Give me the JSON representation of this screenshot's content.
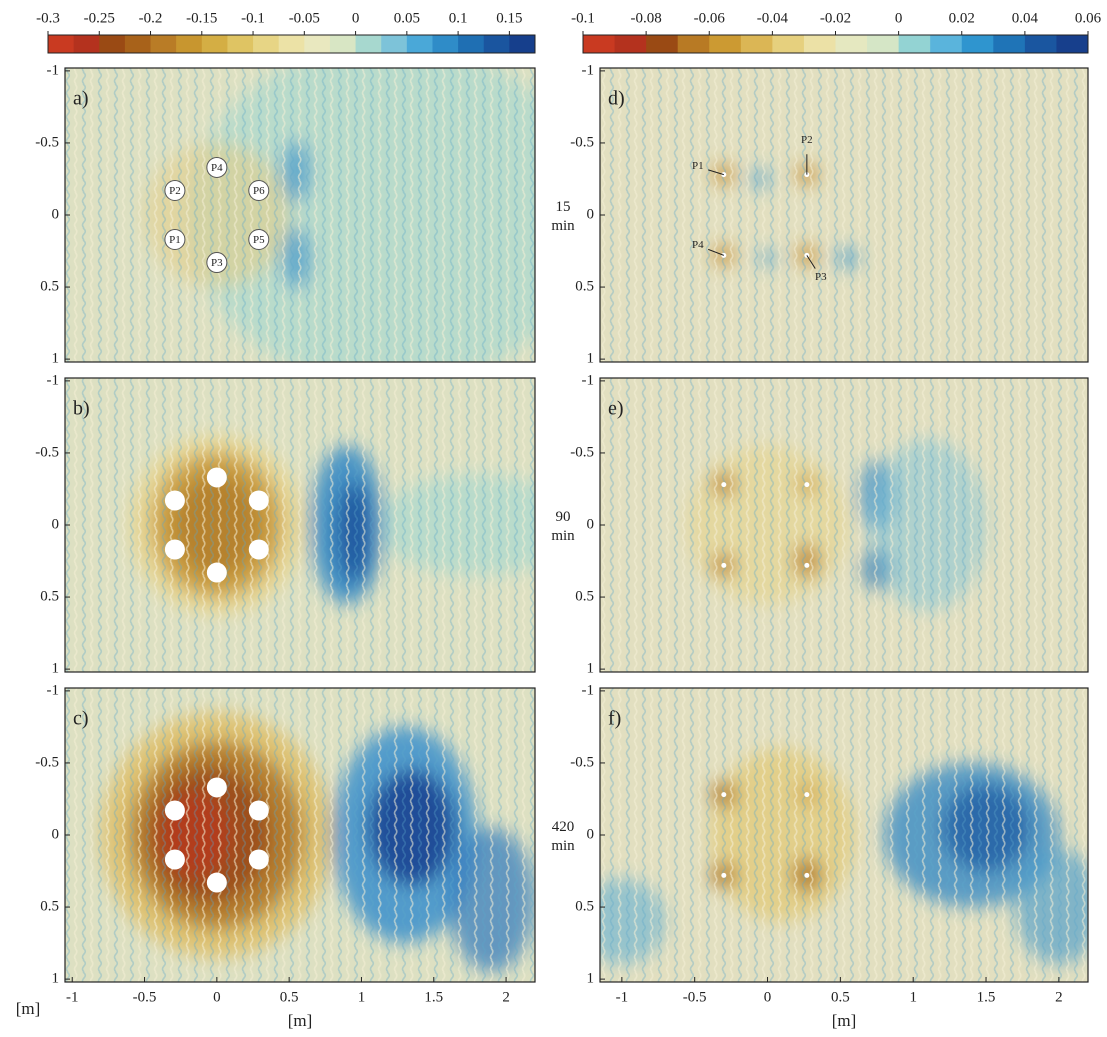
{
  "chart_data": [
    {
      "type": "heatmap",
      "panel_label": "a)",
      "time_label": "15 min",
      "colorbar": {
        "lim": [
          -0.3,
          0.175
        ],
        "ticks": [
          -0.3,
          -0.25,
          -0.2,
          -0.15,
          -0.1,
          -0.05,
          0,
          0.05,
          0.1,
          0.15
        ],
        "colors": [
          "#c93a21",
          "#b4321e",
          "#9a4a14",
          "#a8621a",
          "#b97c26",
          "#c8962f",
          "#d4ae44",
          "#dfc463",
          "#e7d585",
          "#ece2a6",
          "#e9e8bf",
          "#d8e6c4",
          "#a7d8cf",
          "#7dc3d9",
          "#4aa8d8",
          "#2f8cc8",
          "#1f6fb3",
          "#1a559f",
          "#163f8c"
        ]
      },
      "xlim": [
        -1.05,
        2.2
      ],
      "ylim": [
        -1.02,
        1.02
      ],
      "y_reversed": true,
      "yticks": [
        -1,
        -0.5,
        0,
        0.5,
        1
      ],
      "piles": [
        "P4",
        "P2",
        "P6",
        "P1",
        "P5",
        "P3"
      ]
    },
    {
      "type": "heatmap",
      "panel_label": "b)",
      "time_label": "90 min",
      "xlim": [
        -1.05,
        2.2
      ],
      "ylim": [
        -1.02,
        1.02
      ],
      "y_reversed": true,
      "yticks": [
        -1,
        -0.5,
        0,
        0.5,
        1
      ]
    },
    {
      "type": "heatmap",
      "panel_label": "c)",
      "time_label": "420 min",
      "xlim": [
        -1.05,
        2.2
      ],
      "ylim": [
        -1.02,
        1.02
      ],
      "y_reversed": true,
      "yticks": [
        -1,
        -0.5,
        0,
        0.5,
        1
      ],
      "xticks": [
        -1,
        -0.5,
        0,
        0.5,
        1,
        1.5,
        2
      ],
      "x_label": "[m]",
      "y_label": "[m]"
    },
    {
      "type": "heatmap",
      "panel_label": "d)",
      "colorbar": {
        "lim": [
          -0.1,
          0.06
        ],
        "ticks": [
          -0.1,
          -0.08,
          -0.06,
          -0.04,
          -0.02,
          0,
          0.02,
          0.04,
          0.06
        ],
        "colors": [
          "#c93a21",
          "#b4321e",
          "#9a4a14",
          "#b87a24",
          "#cc9a32",
          "#dbb655",
          "#e6d07e",
          "#ece1a6",
          "#e5e8c0",
          "#d5e6c6",
          "#93d3d3",
          "#5ab4dc",
          "#2f95cf",
          "#1f74b7",
          "#1a56a0",
          "#173f8c"
        ]
      },
      "xlim": [
        -1.15,
        2.2
      ],
      "ylim": [
        -1.02,
        1.02
      ],
      "y_reversed": true,
      "yticks": [
        -1,
        -0.5,
        0,
        0.5,
        1
      ],
      "piles": [
        "P1",
        "P2",
        "P4",
        "P3"
      ]
    },
    {
      "type": "heatmap",
      "panel_label": "e)",
      "xlim": [
        -1.15,
        2.2
      ],
      "ylim": [
        -1.02,
        1.02
      ],
      "y_reversed": true,
      "yticks": [
        -1,
        -0.5,
        0,
        0.5,
        1
      ]
    },
    {
      "type": "heatmap",
      "panel_label": "f)",
      "xlim": [
        -1.15,
        2.2
      ],
      "ylim": [
        -1.02,
        1.02
      ],
      "y_reversed": true,
      "yticks": [
        -1,
        -0.5,
        0,
        0.5,
        1
      ],
      "xticks": [
        -1,
        -0.5,
        0,
        0.5,
        1,
        1.5,
        2
      ],
      "x_label": "[m]"
    }
  ]
}
